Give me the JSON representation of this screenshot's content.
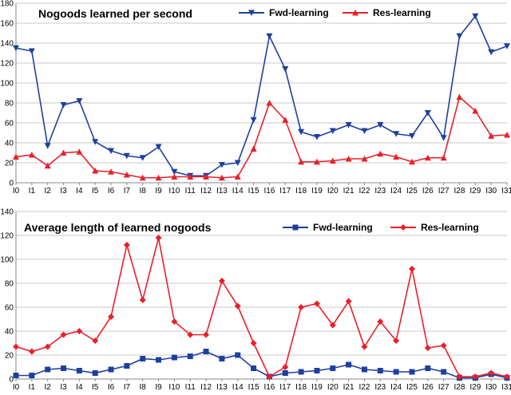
{
  "chart_data": [
    {
      "type": "line",
      "title": "Nogoods learned per second",
      "xlabel": "",
      "ylabel": "",
      "ylim": [
        0,
        180
      ],
      "yticks": [
        0,
        20,
        40,
        60,
        80,
        100,
        120,
        140,
        160,
        180
      ],
      "categories": [
        "I0",
        "I1",
        "I2",
        "I3",
        "I4",
        "I5",
        "I6",
        "I7",
        "I8",
        "I9",
        "I10",
        "I11",
        "I12",
        "I13",
        "I14",
        "I15",
        "I16",
        "I17",
        "I18",
        "I19",
        "I20",
        "I21",
        "I22",
        "I23",
        "I24",
        "I25",
        "I26",
        "I27",
        "I28",
        "I29",
        "I30",
        "I31"
      ],
      "legend_position": "top-right",
      "series": [
        {
          "name": "Fwd-learning",
          "color": "#1f3f9f",
          "marker": "triangle-down",
          "values": [
            135,
            132,
            37,
            78,
            82,
            41,
            32,
            27,
            25,
            36,
            11,
            7,
            7,
            18,
            20,
            63,
            147,
            114,
            51,
            46,
            52,
            58,
            52,
            58,
            49,
            47,
            70,
            45,
            147,
            167,
            131,
            137
          ]
        },
        {
          "name": "Res-learning",
          "color": "#e8202a",
          "marker": "triangle-up",
          "values": [
            26,
            28,
            17,
            30,
            31,
            12,
            11,
            8,
            5,
            5,
            6,
            6,
            6,
            5,
            6,
            34,
            80,
            63,
            21,
            21,
            22,
            24,
            24,
            29,
            26,
            21,
            25,
            25,
            86,
            72,
            47,
            48
          ]
        }
      ]
    },
    {
      "type": "line",
      "title": "Average length of learned nogoods",
      "xlabel": "",
      "ylabel": "",
      "ylim": [
        0,
        140
      ],
      "yticks": [
        0,
        20,
        40,
        60,
        80,
        100,
        120,
        140
      ],
      "categories": [
        "I0",
        "I1",
        "I2",
        "I3",
        "I4",
        "I5",
        "I6",
        "I7",
        "I8",
        "I9",
        "I10",
        "I11",
        "I12",
        "I13",
        "I14",
        "I15",
        "I16",
        "I17",
        "I18",
        "I19",
        "I20",
        "I21",
        "I22",
        "I23",
        "I24",
        "I25",
        "I26",
        "I27",
        "I28",
        "I29",
        "I30",
        "I31"
      ],
      "legend_position": "top-right",
      "series": [
        {
          "name": "Fwd-learning",
          "color": "#1f3f9f",
          "marker": "square",
          "values": [
            3,
            3,
            8,
            9,
            7,
            5,
            8,
            11,
            17,
            16,
            18,
            19,
            23,
            17,
            20,
            9,
            2,
            5,
            6,
            7,
            9,
            12,
            8,
            7,
            6,
            6,
            9,
            6,
            1,
            1,
            4,
            1
          ]
        },
        {
          "name": "Res-learning",
          "color": "#e8202a",
          "marker": "diamond",
          "values": [
            27,
            23,
            27,
            37,
            40,
            32,
            52,
            112,
            66,
            118,
            48,
            37,
            37,
            82,
            61,
            30,
            2,
            10,
            60,
            63,
            45,
            65,
            27,
            48,
            32,
            92,
            26,
            28,
            2,
            2,
            5,
            2
          ]
        }
      ]
    }
  ]
}
